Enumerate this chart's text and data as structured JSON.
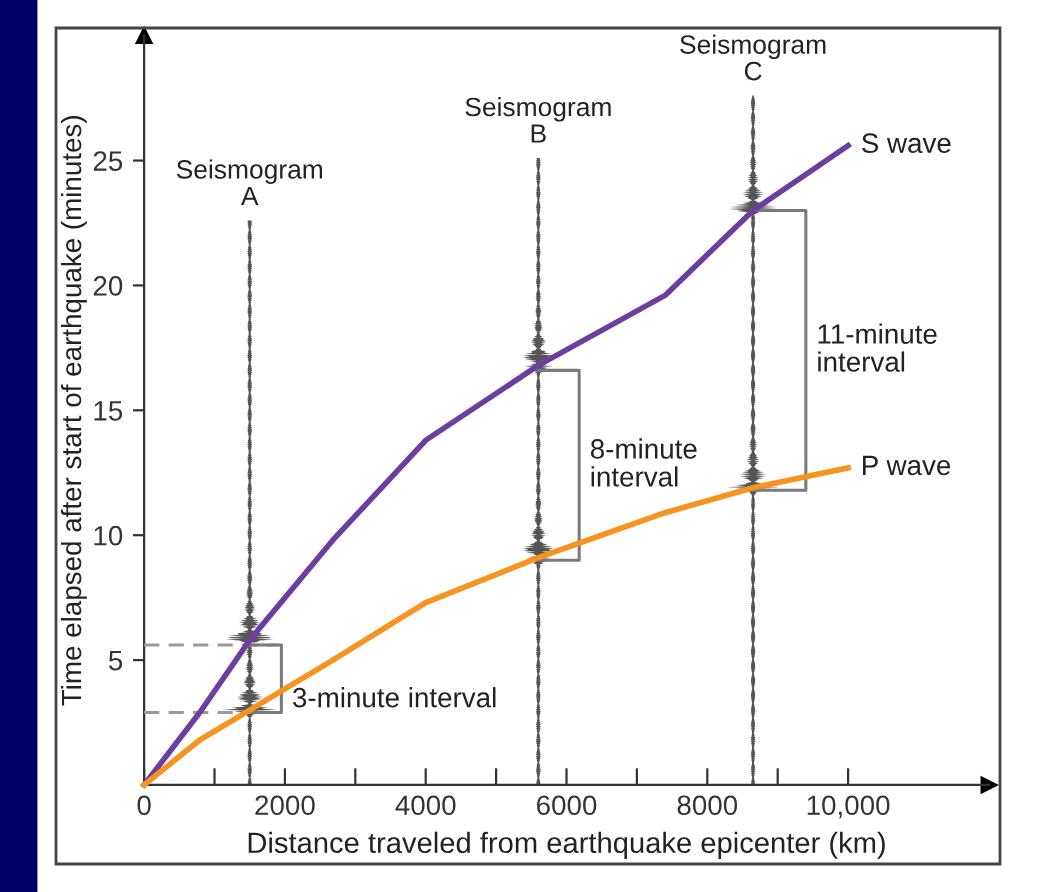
{
  "chart_data": {
    "type": "line",
    "xlabel": "Distance traveled from earthquake epicenter (km)",
    "ylabel": "Time elapsed after start of earthquake (minutes)",
    "xlim": [
      0,
      12000
    ],
    "ylim": [
      0,
      30
    ],
    "xticks": [
      0,
      {
        "value": 1000,
        "label": null
      },
      2000,
      {
        "value": 3000,
        "label": null
      },
      4000,
      {
        "value": 5000,
        "label": null
      },
      6000,
      {
        "value": 7000,
        "label": null
      },
      8000,
      {
        "value": 9000,
        "label": null
      },
      {
        "value": 10000,
        "label": "10,000"
      }
    ],
    "yticks": [
      5,
      10,
      15,
      20,
      25
    ],
    "grid": false,
    "marker": "none",
    "series": [
      {
        "name": "S wave",
        "color": "#6b3fa0",
        "x": [
          0,
          790,
          1500,
          2680,
          4000,
          5600,
          7400,
          8650,
          10000
        ],
        "values": [
          0,
          2.9,
          5.8,
          9.8,
          13.8,
          16.8,
          19.6,
          23.0,
          25.6
        ]
      },
      {
        "name": "P wave",
        "color": "#f7931e",
        "x": [
          0,
          790,
          1500,
          2680,
          4000,
          5600,
          7400,
          8650,
          10000
        ],
        "values": [
          0,
          1.8,
          3.0,
          5.0,
          7.3,
          9.1,
          10.9,
          11.9,
          12.7
        ]
      },
      {
        "color": "#9a9a9a",
        "line_style": "dashed",
        "x": [
          0,
          1900
        ],
        "values": [
          5.6,
          5.6
        ]
      },
      {
        "color": "#9a9a9a",
        "line_style": "dashed",
        "x": [
          0,
          1900
        ],
        "values": [
          2.9,
          2.9
        ]
      },
      {
        "color": "#7a7a7a",
        "x": [
          1500,
          1950,
          1950,
          1500
        ],
        "values": [
          5.6,
          5.6,
          2.9,
          2.9
        ]
      },
      {
        "color": "#7a7a7a",
        "x": [
          5600,
          6180,
          6180,
          5600
        ],
        "values": [
          16.6,
          16.6,
          9.0,
          9.0
        ]
      },
      {
        "color": "#7a7a7a",
        "x": [
          8650,
          9400,
          9400,
          8650
        ],
        "values": [
          23.0,
          23.0,
          11.8,
          11.8
        ]
      }
    ],
    "annotations": [
      "Seismogram\nA",
      "Seismogram\nB",
      "Seismogram\nC",
      "3-minute interval",
      "8-minute\ninterval",
      "11-minute\ninterval"
    ]
  }
}
